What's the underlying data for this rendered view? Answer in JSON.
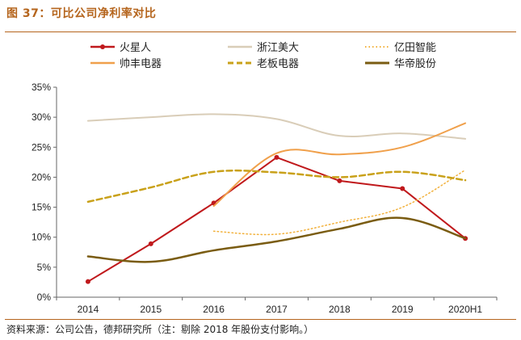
{
  "header": {
    "title": "图 37：可比公司净利率对比"
  },
  "footer": {
    "source": "资料来源：公司公告，德邦研究所（注：剔除 2018 年股份支付影响。）"
  },
  "chart_data": {
    "type": "line",
    "categories": [
      "2014",
      "2015",
      "2016",
      "2017",
      "2018",
      "2019",
      "2020H1"
    ],
    "y_ticks": [
      "0%",
      "5%",
      "10%",
      "15%",
      "20%",
      "25%",
      "30%",
      "35%"
    ],
    "ylim": [
      0,
      35
    ],
    "y_unit": "%",
    "grid": false,
    "legend_position": "top",
    "series": [
      {
        "name": "火星人",
        "color": "#c0191c",
        "style": "solid",
        "width": 2,
        "markers": true,
        "values": [
          2.6,
          8.9,
          15.7,
          23.3,
          19.4,
          18.1,
          9.8
        ]
      },
      {
        "name": "浙江美大",
        "color": "#d9cdb8",
        "style": "solid",
        "width": 2,
        "markers": false,
        "values": [
          29.4,
          30.0,
          30.5,
          29.7,
          26.9,
          27.3,
          26.4
        ]
      },
      {
        "name": "亿田智能",
        "color": "#f2b13c",
        "style": "dotted",
        "width": 1.5,
        "markers": false,
        "values": [
          null,
          null,
          11.0,
          10.5,
          12.5,
          15.0,
          21.2
        ]
      },
      {
        "name": "帅丰电器",
        "color": "#f0a04b",
        "style": "solid",
        "width": 2,
        "markers": false,
        "values": [
          null,
          null,
          15.2,
          24.0,
          23.8,
          25.0,
          29.0
        ]
      },
      {
        "name": "老板电器",
        "color": "#c9a11a",
        "style": "dashed",
        "width": 2.5,
        "markers": false,
        "values": [
          15.9,
          18.3,
          20.9,
          20.8,
          20.0,
          20.9,
          19.5
        ]
      },
      {
        "name": "华帝股份",
        "color": "#7a5c12",
        "style": "solid",
        "width": 2.5,
        "markers": false,
        "values": [
          6.8,
          5.9,
          7.8,
          9.3,
          11.4,
          13.2,
          9.8
        ]
      }
    ]
  }
}
